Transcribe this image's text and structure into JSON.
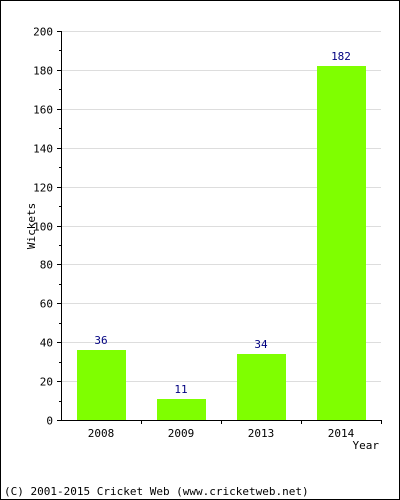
{
  "chart_data": {
    "type": "bar",
    "categories": [
      "2008",
      "2009",
      "2013",
      "2014"
    ],
    "values": [
      36,
      11,
      34,
      182
    ],
    "value_labels": [
      "36",
      "11",
      "34",
      "182"
    ],
    "title": "",
    "xlabel": "Year",
    "ylabel": "Wickets",
    "ylim": [
      0,
      200
    ],
    "yticks": [
      0,
      20,
      40,
      60,
      80,
      100,
      120,
      140,
      160,
      180,
      200
    ],
    "ytick_labels": [
      "0",
      "20",
      "40",
      "60",
      "80",
      "100",
      "120",
      "140",
      "160",
      "180",
      "200"
    ],
    "grid": true,
    "legend": "none",
    "colors": {
      "bar": "#7fff00",
      "value_label": "#000080",
      "grid": "#dddddd",
      "axis": "#000000"
    }
  },
  "footer": {
    "copyright": "(C) 2001-2015 Cricket Web (www.cricketweb.net)"
  }
}
